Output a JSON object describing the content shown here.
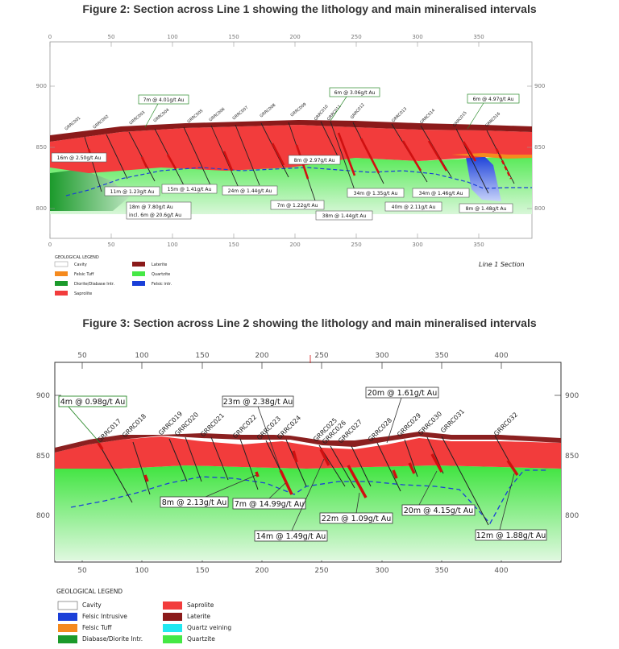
{
  "figure2": {
    "title": "Figure 2: Section across Line 1 showing the lithology and main mineralised intervals",
    "x_ticks": [
      "0",
      "50",
      "100",
      "150",
      "200",
      "250",
      "300",
      "350"
    ],
    "y_ticks": [
      "900",
      "850",
      "800"
    ],
    "section_label": "Line 1 Section",
    "holes": [
      "GRRC001",
      "GRRC002",
      "GRRC003",
      "GRRC004",
      "GRRC005",
      "GRRC006",
      "GRRC007",
      "GRRC008",
      "GRRC009",
      "GRRC010",
      "GRRC011",
      "GRRC012",
      "GRRC013",
      "GRRC014",
      "GRRC015",
      "GRRC016"
    ],
    "intervals": {
      "i1": "7m @ 4.01g/t Au",
      "i2": "6m @ 3.06g/t Au",
      "i3": "6m @ 4.97g/t Au",
      "i4": "16m @ 2.50g/t Au",
      "i5": "8m @ 2.97g/t Au",
      "i6": "11m @ 1.23g/t Au",
      "i7": "15m @ 1.41g/t Au",
      "i8": "24m @ 1.44g/t Au",
      "i9": "34m @ 1.35g/t Au",
      "i10": "34m @ 1.46g/t Au",
      "i11": "18m @ 7.80g/t Au",
      "i12": "incl. 6m @ 20.6g/t Au",
      "i13": "7m @ 1.22g/t Au",
      "i14": "40m @ 2.11g/t Au",
      "i15": "8m @ 1.48g/t Au",
      "i16": "38m @ 1.44g/t Au"
    },
    "legend": {
      "title": "GEOLOGICAL LEGEND",
      "cavity": "Cavity",
      "felsic_tuff": "Felsic Tuff",
      "diorite": "Diorite/Diabase Intr.",
      "saprolite": "Saprolite",
      "laterite": "Laterite",
      "quartzite": "Quartzite",
      "felsic_intr": "Felsic intr."
    }
  },
  "figure3": {
    "title": "Figure 3: Section across Line 2 showing the lithology and main mineralised intervals",
    "x_ticks": [
      "50",
      "100",
      "150",
      "200",
      "250",
      "300",
      "350",
      "400"
    ],
    "y_ticks": [
      "900",
      "850",
      "800"
    ],
    "holes": [
      "GRRC017",
      "GRRC018",
      "GRRC019",
      "GRRC020",
      "GRRC021",
      "GRRC022",
      "GRRC023",
      "GRRC024",
      "GRRC025",
      "GRRC026",
      "GRRC027",
      "GRRC028",
      "GRRC029",
      "GRRC030",
      "GRRC031",
      "GRRC032"
    ],
    "intervals": {
      "j1": "4m @ 0.98g/t Au",
      "j2": "23m @ 2.38g/t Au",
      "j3": "20m @ 1.61g/t Au",
      "j4": "8m @ 2.13g/t Au",
      "j5": "7m @ 14.99g/t Au",
      "j6": "22m @ 1.09g/t Au",
      "j7": "20m @ 4.15g/t Au",
      "j8": "14m @ 1.49g/t Au",
      "j9": "12m @ 1.88g/t Au"
    },
    "legend": {
      "title": "GEOLOGICAL LEGEND",
      "cavity": "Cavity",
      "felsic_intrusive": "Felsic Intrusive",
      "felsic_tuff": "Felsic Tuff",
      "diabase": "Diabase/Diorite Intr.",
      "saprolite": "Saprolite",
      "laterite": "Laterite",
      "quartz_veining": "Quartz veining",
      "quartzite": "Quartzite"
    }
  },
  "colors": {
    "laterite": "#8b1a1a",
    "saprolite": "#f23c3c",
    "quartzite": "#45e845",
    "diorite": "#1b9a2b",
    "felsic_tuff": "#f58a1e",
    "felsic_intr": "#1a3fd8",
    "quartz_vein": "#22e8f0",
    "label_border_green": "#2a8a2a"
  }
}
